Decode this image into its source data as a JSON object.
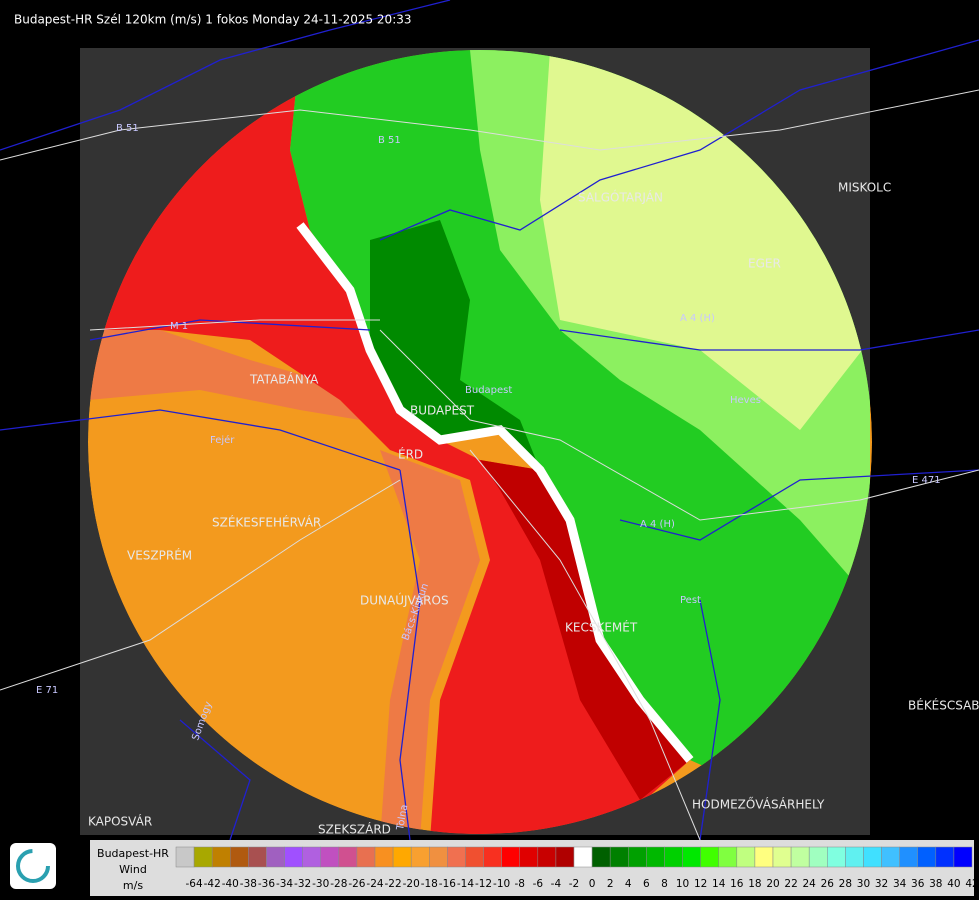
{
  "header": {
    "title": "Budapest-HR Szél 120km (m/s) 1 fokos Monday 24-11-2025 20:33"
  },
  "map": {
    "cities": [
      "SALGÓTARJÁN",
      "EGER",
      "MISKOLC",
      "BUDAPEST",
      "ÉRD",
      "TATABÁNYA",
      "SZÉKESFEHÉRVÁR",
      "VESZPRÉM",
      "DUNAÚJVÁROS",
      "KECSKEMÉT",
      "KAPOSVÁR",
      "SZEKSZÁRD",
      "HODMEZŐVÁSÁRHELY",
      "BÉKÉSCSABA"
    ],
    "roads": [
      "B 51",
      "B 51",
      "M 1",
      "A 4 (H)",
      "E 71",
      "E 471",
      "Pest",
      "Heves",
      "Fejér",
      "Budapest",
      "Bács-Kiskun",
      "Somogy",
      "Tolna",
      "A 4 (H)"
    ]
  },
  "legend": {
    "station": "Budapest-HR",
    "quantity": "Wind",
    "unit": "m/s",
    "ticks": [
      -64,
      -42,
      -40,
      -38,
      -36,
      -34,
      -32,
      -30,
      -28,
      -26,
      -24,
      -22,
      -20,
      -18,
      -16,
      -14,
      -12,
      -10,
      -8,
      -6,
      -4,
      -2,
      0,
      2,
      4,
      6,
      8,
      10,
      12,
      14,
      16,
      18,
      20,
      22,
      24,
      26,
      28,
      30,
      32,
      34,
      36,
      38,
      40,
      42
    ],
    "colors": [
      "#c8c8c8",
      "#a8a800",
      "#c08000",
      "#b05a10",
      "#a85050",
      "#a060c0",
      "#a050ff",
      "#b060e0",
      "#c050c0",
      "#d05090",
      "#e87050",
      "#f89020",
      "#ffa800",
      "#f8a030",
      "#f09040",
      "#f07050",
      "#f05030",
      "#f83020",
      "#ff0000",
      "#e00000",
      "#c80000",
      "#b00000",
      "#ffffff",
      "#006000",
      "#008000",
      "#00a000",
      "#00b800",
      "#00d000",
      "#00e800",
      "#40ff00",
      "#80ff40",
      "#c0ff80",
      "#ffff80",
      "#e0ff90",
      "#c0ffa0",
      "#a0ffc0",
      "#80ffe0",
      "#60f0f0",
      "#40e0ff",
      "#40c0ff",
      "#2090ff",
      "#0060ff",
      "#0030ff",
      "#0000ff"
    ]
  }
}
